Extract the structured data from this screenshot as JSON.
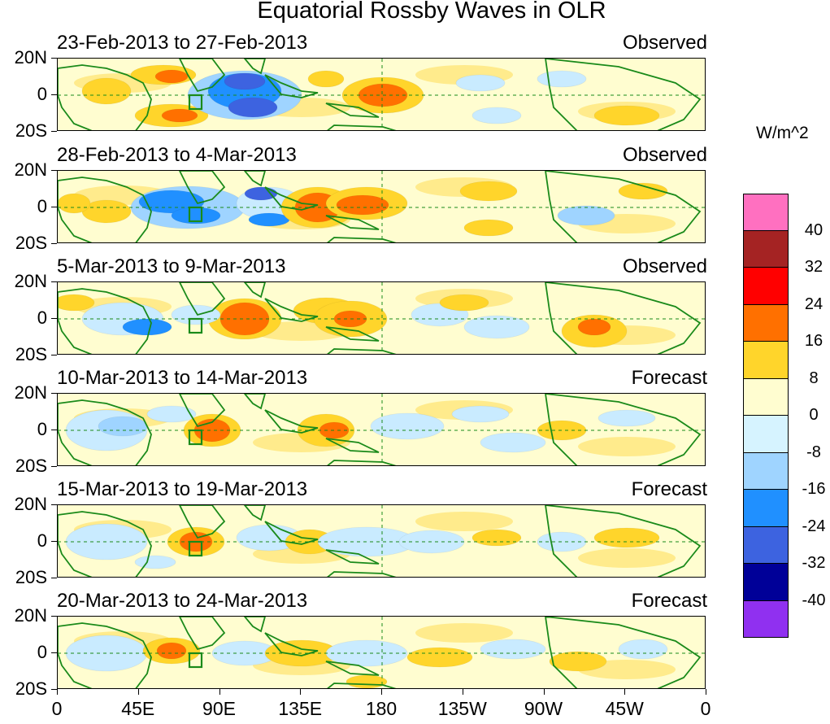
{
  "title": "Equatorial Rossby Waves in OLR",
  "panels": [
    {
      "date": "23-Feb-2013 to 27-Feb-2013",
      "kind": "Observed"
    },
    {
      "date": "28-Feb-2013 to 4-Mar-2013",
      "kind": "Observed"
    },
    {
      "date": "5-Mar-2013 to 9-Mar-2013",
      "kind": "Observed"
    },
    {
      "date": "10-Mar-2013 to 14-Mar-2013",
      "kind": "Forecast"
    },
    {
      "date": "15-Mar-2013 to 19-Mar-2013",
      "kind": "Forecast"
    },
    {
      "date": "20-Mar-2013 to 24-Mar-2013",
      "kind": "Forecast"
    }
  ],
  "lat_labels": [
    "20N",
    "0",
    "20S"
  ],
  "lon_labels": [
    "0",
    "45E",
    "90E",
    "135E",
    "180",
    "135W",
    "90W",
    "45W",
    "0"
  ],
  "colorbar": {
    "units": "W/m^2",
    "labels": [
      "40",
      "32",
      "24",
      "16",
      "8",
      "0",
      "-8",
      "-16",
      "-24",
      "-32",
      "-40"
    ],
    "colors": [
      "#ff70c0",
      "#a52323",
      "#ff0000",
      "#ff7000",
      "#ffd52b",
      "#fffdd0",
      "#d6f3ff",
      "#9fd4ff",
      "#2090ff",
      "#3d63e0",
      "#000098",
      "#9030f0"
    ]
  },
  "colors": {
    "land": "#1a8a1a",
    "grid": "#1a8a1a"
  }
}
